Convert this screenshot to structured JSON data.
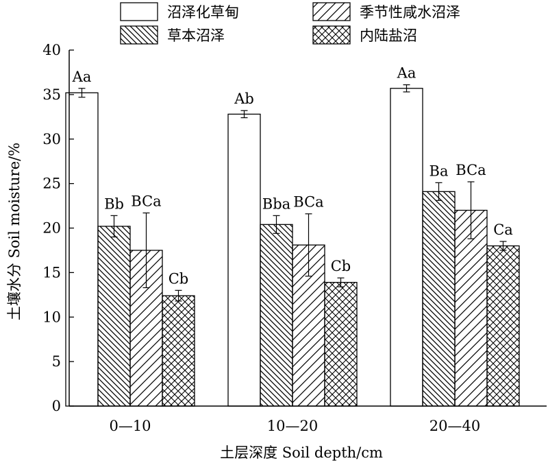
{
  "chart_data": {
    "type": "bar",
    "title": "",
    "xlabel": "土层深度 Soil depth/cm",
    "ylabel": "土壤水分 Soil moisture/%",
    "categories": [
      "0—10",
      "10—20",
      "20—40"
    ],
    "ylim": [
      0,
      40
    ],
    "yticks": [
      "0",
      "5",
      "10",
      "15",
      "20",
      "25",
      "30",
      "35",
      "40"
    ],
    "ytick_values": [
      0,
      5,
      10,
      15,
      20,
      25,
      30,
      35,
      40
    ],
    "grid": false,
    "legend_position": "top",
    "series": [
      {
        "name": "沼泽化草甸",
        "pattern": "blank",
        "values": [
          35.2,
          32.8,
          35.7
        ],
        "errors": [
          0.5,
          0.4,
          0.4
        ],
        "labels": [
          "Aa",
          "Ab",
          "Aa"
        ]
      },
      {
        "name": "草本沼泽",
        "pattern": "dense-backslash-hatch",
        "values": [
          20.2,
          20.4,
          24.1
        ],
        "errors": [
          1.2,
          1.0,
          1.0
        ],
        "labels": [
          "Bb",
          "Bba",
          "Ba"
        ]
      },
      {
        "name": "季节性咸水沼泽",
        "pattern": "forward-slash-hatch",
        "values": [
          17.5,
          18.1,
          22.0
        ],
        "errors": [
          4.2,
          3.5,
          3.2
        ],
        "labels": [
          "BCa",
          "BCa",
          "BCa"
        ]
      },
      {
        "name": "内陆盐沼",
        "pattern": "cross-hatch",
        "values": [
          12.4,
          13.9,
          18.0
        ],
        "errors": [
          0.6,
          0.5,
          0.5
        ],
        "labels": [
          "Cb",
          "Cb",
          "Ca"
        ]
      }
    ],
    "legend_order": [
      0,
      2,
      1,
      3
    ]
  }
}
